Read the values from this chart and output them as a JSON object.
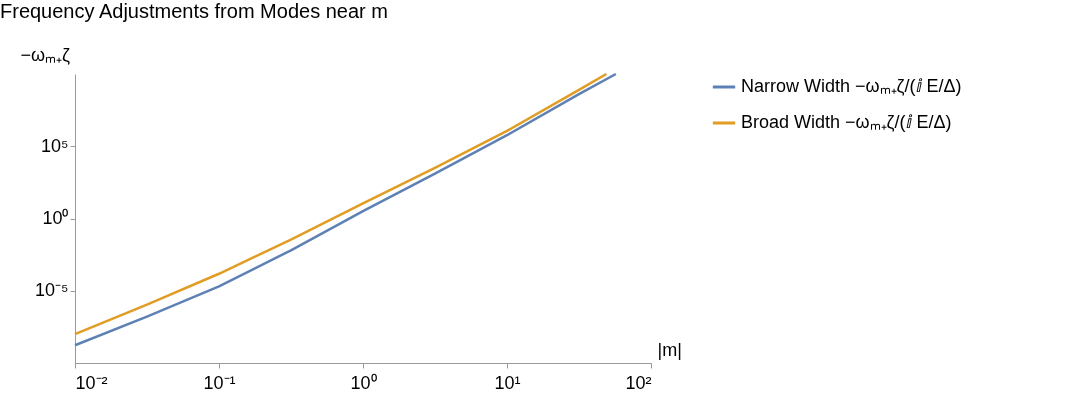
{
  "chart_data": {
    "type": "line",
    "title": "Frequency Adjustments from Modes near m",
    "xlabel": "|m|",
    "ylabel": "−ωₘ₊ζ",
    "log": "xy",
    "grid": false,
    "legend": "right",
    "marker": "none",
    "line_style": "solid",
    "xlim": [
      0.01,
      100
    ],
    "ylim": [
      1e-10,
      10000000000.0
    ],
    "xticks": [
      {
        "value": 0.01,
        "label": "10⁻²"
      },
      {
        "value": 0.1,
        "label": "10⁻¹"
      },
      {
        "value": 1,
        "label": "10⁰"
      },
      {
        "value": 10,
        "label": "10¹"
      },
      {
        "value": 100,
        "label": "10²"
      }
    ],
    "yticks": [
      {
        "value": 1e-05,
        "label": "10⁻⁵"
      },
      {
        "value": 1,
        "label": "10⁰"
      },
      {
        "value": 100000,
        "label": "10⁵"
      }
    ],
    "series": [
      {
        "name": "Narrow Width −ωₘ₊ζ/(ⅈ E/Δ)",
        "color": "#5e81b5",
        "x": [
          0.01,
          0.0316,
          0.1,
          0.316,
          1,
          3.16,
          10,
          31.6,
          57
        ],
        "values": [
          1.7e-09,
          1.6e-07,
          2e-05,
          0.0063,
          3.2,
          1260,
          580000,
          400000000,
          10000000000.0
        ]
      },
      {
        "name": "Broad Width −ωₘ₊ζ/(ⅈ E/Δ)",
        "color": "#e19c24",
        "x": [
          0.01,
          0.0316,
          0.1,
          0.316,
          1,
          3.16,
          10,
          31.6,
          49
        ],
        "values": [
          1e-08,
          1.1e-06,
          0.00015,
          0.035,
          11,
          3200,
          1150000,
          790000000,
          10000000000.0
        ]
      }
    ]
  }
}
